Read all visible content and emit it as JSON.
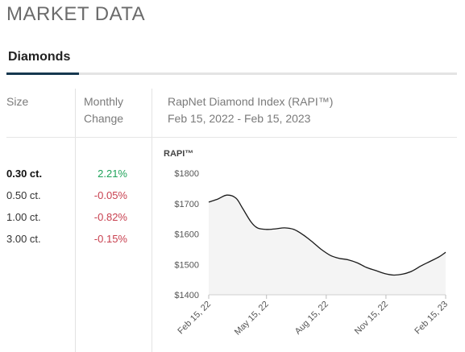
{
  "page": {
    "title": "MARKET DATA"
  },
  "tabs": {
    "active": "Diamonds"
  },
  "table": {
    "size_header": "Size",
    "change_header_line1": "Monthly",
    "change_header_line2": "Change",
    "index_header": "RapNet Diamond Index (RAPI™)",
    "date_range": "Feb 15, 2022 - Feb 15, 2023",
    "rows": [
      {
        "size": "0.30 ct.",
        "change": "2.21%",
        "direction": "up",
        "selected": true
      },
      {
        "size": "0.50 ct.",
        "change": "-0.05%",
        "direction": "down",
        "selected": false
      },
      {
        "size": "1.00 ct.",
        "change": "-0.82%",
        "direction": "down",
        "selected": false
      },
      {
        "size": "3.00 ct.",
        "change": "-0.15%",
        "direction": "down",
        "selected": false
      }
    ]
  },
  "colors": {
    "positive": "#1fa35a",
    "negative": "#c8404f",
    "tab_underline": "#16384f",
    "chart_line": "#1a1a1a",
    "chart_fill": "#f4f4f4"
  },
  "chart_data": {
    "type": "area",
    "ylabel": "RAPI™",
    "ylim": [
      1400,
      1800
    ],
    "y_ticks": [
      "$1800",
      "$1700",
      "$1600",
      "$1500",
      "$1400"
    ],
    "y_tick_values": [
      1800,
      1700,
      1600,
      1500,
      1400
    ],
    "x_ticks": [
      "Feb 15, 22",
      "May 15, 22",
      "Aug 15, 22",
      "Nov 15, 22",
      "Feb 15, 23"
    ],
    "x_tick_dates": [
      "2022-02-15",
      "2022-05-15",
      "2022-08-15",
      "2022-11-15",
      "2023-02-15"
    ],
    "grid": false,
    "series": [
      {
        "x": [
          "2022-02-15",
          "2022-03-01",
          "2022-03-15",
          "2022-03-29",
          "2022-04-08",
          "2022-04-21",
          "2022-05-01",
          "2022-05-15",
          "2022-05-29",
          "2022-06-12",
          "2022-06-26",
          "2022-07-10",
          "2022-07-24",
          "2022-08-07",
          "2022-08-21",
          "2022-09-04",
          "2022-09-18",
          "2022-10-02",
          "2022-10-16",
          "2022-10-30",
          "2022-11-13",
          "2022-11-27",
          "2022-12-11",
          "2022-12-25",
          "2023-01-08",
          "2023-01-22",
          "2023-02-05",
          "2023-02-15"
        ],
        "values": [
          1705,
          1715,
          1728,
          1718,
          1685,
          1640,
          1620,
          1615,
          1617,
          1620,
          1615,
          1598,
          1575,
          1550,
          1530,
          1520,
          1515,
          1505,
          1490,
          1480,
          1470,
          1465,
          1468,
          1478,
          1495,
          1510,
          1525,
          1540
        ]
      }
    ]
  }
}
